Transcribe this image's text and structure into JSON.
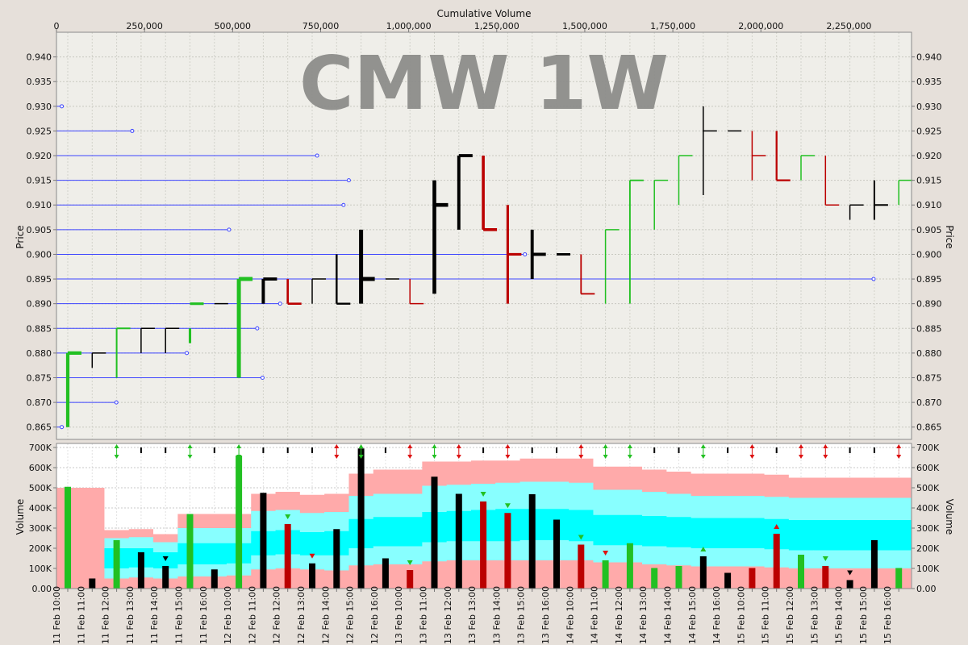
{
  "chart_data": [
    {
      "type": "bar",
      "subtype": "OHLC",
      "watermark": "CMW 1W",
      "top_axis_title": "Cumulative Volume",
      "top_axis_ticks": [
        0,
        250000,
        500000,
        750000,
        1000000,
        1250000,
        1500000,
        1750000,
        2000000,
        2250000
      ],
      "top_axis_labels": [
        "0",
        "250,000",
        "500,000",
        "750,000",
        "1,000,000",
        "1,250,000",
        "1,500,000",
        "1,750,000",
        "2,000,000",
        "2,250,000"
      ],
      "ylabel": "Price",
      "ylim": [
        0.8625,
        0.945
      ],
      "y_ticks": [
        "0.940",
        "0.935",
        "0.930",
        "0.925",
        "0.920",
        "0.915",
        "0.910",
        "0.905",
        "0.900",
        "0.895",
        "0.890",
        "0.885",
        "0.880",
        "0.875",
        "0.870",
        "0.865"
      ],
      "grid": true,
      "bar_colors": {
        "up": "#22c022",
        "down": "#bb0000",
        "unchanged": "#000000"
      },
      "volume_profile_color": "#3d45ff",
      "volume_profile": [
        {
          "price": 0.93,
          "cum_volume": 15000
        },
        {
          "price": 0.925,
          "cum_volume": 215000
        },
        {
          "price": 0.92,
          "cum_volume": 740000
        },
        {
          "price": 0.915,
          "cum_volume": 830000
        },
        {
          "price": 0.91,
          "cum_volume": 815000
        },
        {
          "price": 0.905,
          "cum_volume": 490000
        },
        {
          "price": 0.9,
          "cum_volume": 1330000
        },
        {
          "price": 0.895,
          "cum_volume": 2320000
        },
        {
          "price": 0.89,
          "cum_volume": 635000
        },
        {
          "price": 0.885,
          "cum_volume": 570000
        },
        {
          "price": 0.88,
          "cum_volume": 370000
        },
        {
          "price": 0.875,
          "cum_volume": 585000
        },
        {
          "price": 0.87,
          "cum_volume": 170000
        },
        {
          "price": 0.865,
          "cum_volume": 15000
        }
      ],
      "x": [
        "11 Feb 10:00",
        "11 Feb 11:00",
        "11 Feb 12:00",
        "11 Feb 13:00",
        "11 Feb 14:00",
        "11 Feb 15:00",
        "11 Feb 16:00",
        "12 Feb 10:00",
        "12 Feb 11:00",
        "12 Feb 12:00",
        "12 Feb 13:00",
        "12 Feb 14:00",
        "12 Feb 15:00",
        "12 Feb 16:00",
        "13 Feb 10:00",
        "13 Feb 11:00",
        "13 Feb 12:00",
        "13 Feb 13:00",
        "13 Feb 14:00",
        "13 Feb 15:00",
        "13 Feb 16:00",
        "14 Feb 10:00",
        "14 Feb 11:00",
        "14 Feb 12:00",
        "14 Feb 13:00",
        "14 Feb 14:00",
        "14 Feb 15:00",
        "14 Feb 16:00",
        "15 Feb 10:00",
        "15 Feb 11:00",
        "15 Feb 12:00",
        "15 Feb 13:00",
        "15 Feb 14:00",
        "15 Feb 15:00",
        "15 Feb 16:00"
      ],
      "series": [
        {
          "name": "open",
          "values": [
            0.865,
            0.88,
            0.875,
            0.885,
            0.885,
            0.885,
            0.89,
            0.875,
            0.895,
            0.895,
            0.895,
            0.89,
            0.895,
            0.895,
            0.895,
            0.91,
            0.92,
            0.92,
            0.905,
            0.9,
            0.9,
            0.9,
            0.89,
            0.895,
            0.91,
            0.915,
            0.925,
            0.925,
            0.925,
            0.925,
            0.915,
            0.92,
            0.91,
            0.91,
            0.91
          ]
        },
        {
          "name": "high",
          "values": [
            0.88,
            0.88,
            0.885,
            0.885,
            0.885,
            0.885,
            0.89,
            0.895,
            0.895,
            0.895,
            0.895,
            0.9,
            0.905,
            0.895,
            0.895,
            0.915,
            0.92,
            0.92,
            0.91,
            0.905,
            0.9,
            0.9,
            0.905,
            0.915,
            0.915,
            0.92,
            0.93,
            0.925,
            0.925,
            0.925,
            0.92,
            0.92,
            0.91,
            0.915,
            0.915
          ]
        },
        {
          "name": "low",
          "values": [
            0.865,
            0.877,
            0.875,
            0.88,
            0.88,
            0.882,
            0.89,
            0.875,
            0.89,
            0.89,
            0.89,
            0.89,
            0.89,
            0.895,
            0.89,
            0.892,
            0.905,
            0.905,
            0.89,
            0.895,
            0.9,
            0.892,
            0.89,
            0.89,
            0.905,
            0.91,
            0.912,
            0.925,
            0.915,
            0.915,
            0.915,
            0.91,
            0.907,
            0.907,
            0.91
          ]
        },
        {
          "name": "close",
          "values": [
            0.88,
            0.88,
            0.885,
            0.885,
            0.885,
            0.89,
            0.89,
            0.895,
            0.895,
            0.89,
            0.895,
            0.89,
            0.895,
            0.895,
            0.89,
            0.91,
            0.92,
            0.905,
            0.9,
            0.9,
            0.9,
            0.892,
            0.905,
            0.915,
            0.915,
            0.92,
            0.925,
            0.925,
            0.92,
            0.915,
            0.92,
            0.91,
            0.91,
            0.91,
            0.915
          ]
        },
        {
          "name": "volume",
          "values": [
            505000,
            50000,
            240000,
            180000,
            112000,
            370000,
            95000,
            660000,
            475000,
            320000,
            125000,
            295000,
            695000,
            150000,
            92000,
            555000,
            470000,
            432000,
            375000,
            468000,
            342000,
            218000,
            140000,
            225000,
            102000,
            112000,
            160000,
            78000,
            102000,
            272000,
            168000,
            112000,
            42000,
            240000,
            102000
          ]
        },
        {
          "name": "band_outer_top",
          "values": [
            500000,
            500000,
            290000,
            295000,
            270000,
            370000,
            370000,
            370000,
            470000,
            480000,
            465000,
            470000,
            570000,
            590000,
            590000,
            630000,
            630000,
            635000,
            635000,
            645000,
            645000,
            645000,
            605000,
            605000,
            590000,
            580000,
            570000,
            570000,
            570000,
            565000,
            550000,
            550000,
            550000,
            550000,
            550000
          ]
        },
        {
          "name": "band_outer_bottom",
          "values": [
            0,
            0,
            0,
            0,
            0,
            0,
            0,
            0,
            0,
            0,
            0,
            0,
            0,
            0,
            0,
            0,
            0,
            0,
            0,
            0,
            0,
            0,
            0,
            0,
            0,
            0,
            0,
            0,
            0,
            0,
            0,
            0,
            0,
            0,
            0
          ]
        },
        {
          "name": "band_mid_top",
          "values": [
            0,
            0,
            250000,
            255000,
            230000,
            300000,
            300000,
            300000,
            385000,
            390000,
            375000,
            380000,
            460000,
            470000,
            470000,
            510000,
            515000,
            520000,
            525000,
            530000,
            530000,
            525000,
            490000,
            490000,
            480000,
            470000,
            460000,
            460000,
            460000,
            455000,
            450000,
            450000,
            450000,
            450000,
            450000
          ]
        },
        {
          "name": "band_mid_bottom",
          "values": [
            0,
            0,
            50000,
            55000,
            50000,
            60000,
            60000,
            65000,
            95000,
            100000,
            95000,
            90000,
            115000,
            120000,
            120000,
            135000,
            140000,
            140000,
            140000,
            140000,
            140000,
            140000,
            130000,
            130000,
            120000,
            115000,
            110000,
            110000,
            110000,
            105000,
            100000,
            100000,
            100000,
            100000,
            100000
          ]
        },
        {
          "name": "band_inner_top",
          "values": [
            0,
            0,
            200000,
            200000,
            180000,
            225000,
            225000,
            225000,
            285000,
            290000,
            280000,
            285000,
            345000,
            355000,
            355000,
            380000,
            385000,
            390000,
            395000,
            395000,
            395000,
            390000,
            365000,
            365000,
            360000,
            355000,
            350000,
            350000,
            350000,
            345000,
            340000,
            340000,
            340000,
            340000,
            340000
          ]
        },
        {
          "name": "band_inner_bottom",
          "values": [
            0,
            0,
            100000,
            105000,
            100000,
            120000,
            120000,
            125000,
            165000,
            170000,
            165000,
            165000,
            200000,
            210000,
            210000,
            230000,
            235000,
            235000,
            235000,
            240000,
            240000,
            235000,
            215000,
            215000,
            210000,
            205000,
            200000,
            200000,
            200000,
            195000,
            190000,
            190000,
            190000,
            190000,
            190000
          ]
        }
      ]
    },
    {
      "type": "bar",
      "ylabel": "Volume",
      "ylim": [
        0,
        720000
      ],
      "y_ticks": [
        0,
        100000,
        200000,
        300000,
        400000,
        500000,
        600000,
        700000
      ],
      "y_tick_labels": [
        "0.00",
        "100K",
        "200K",
        "300K",
        "400K",
        "500K",
        "600K",
        "700K"
      ],
      "band_colors": {
        "outer": "#ffaaaa",
        "mid": "#88ffff",
        "inner": "#00ffff"
      },
      "signals": [
        "none",
        "none",
        "up",
        "unch",
        "unch",
        "up",
        "unch",
        "up",
        "unch",
        "unch",
        "unch",
        "down",
        "up",
        "unch",
        "down",
        "up",
        "down",
        "unch",
        "down",
        "unch",
        "unch",
        "down",
        "up",
        "up",
        "unch",
        "unch",
        "up",
        "unch",
        "down",
        "unch",
        "down",
        "down",
        "unch",
        "unch",
        "down"
      ],
      "signal_colors": {
        "up": "#22c022",
        "down": "#dd1111",
        "unch": "#000000"
      },
      "volume_markers": [
        {
          "index": 4,
          "dir": "down",
          "color": "#000000"
        },
        {
          "index": 9,
          "dir": "down",
          "color": "#22c022"
        },
        {
          "index": 10,
          "dir": "down",
          "color": "#dd1111"
        },
        {
          "index": 14,
          "dir": "down",
          "color": "#22c022"
        },
        {
          "index": 17,
          "dir": "down",
          "color": "#22c022"
        },
        {
          "index": 18,
          "dir": "down",
          "color": "#22c022"
        },
        {
          "index": 21,
          "dir": "down",
          "color": "#22c022"
        },
        {
          "index": 22,
          "dir": "down",
          "color": "#dd1111"
        },
        {
          "index": 26,
          "dir": "up",
          "color": "#22c022"
        },
        {
          "index": 29,
          "dir": "up",
          "color": "#dd1111"
        },
        {
          "index": 31,
          "dir": "down",
          "color": "#22c022"
        },
        {
          "index": 32,
          "dir": "down",
          "color": "#000000"
        }
      ]
    }
  ]
}
